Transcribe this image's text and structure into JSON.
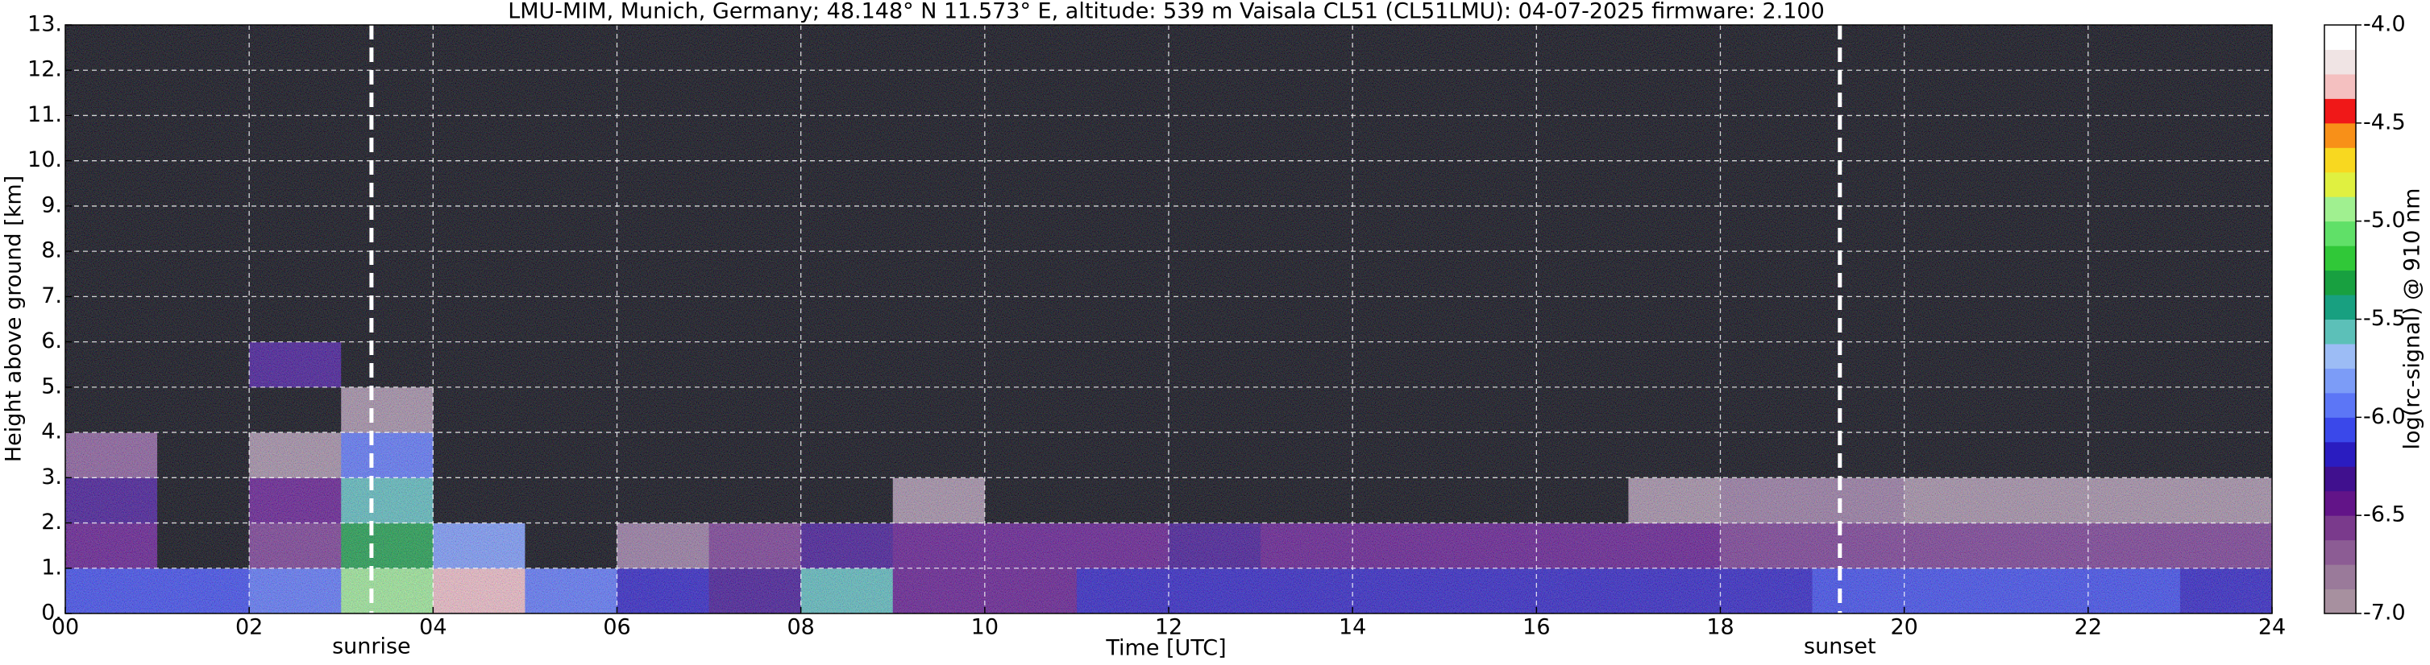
{
  "chart_data": {
    "type": "heatmap",
    "title": "LMU-MIM, Munich, Germany; 48.148° N 11.573° E, altitude: 539 m    Vaisala CL51 (CL51LMU): 04-07-2025    firmware: 2.100",
    "xlabel": "Time [UTC]",
    "ylabel": "Height above ground [km]",
    "colorbar_label": "log(rc-signal) @ 910 nm",
    "xlim": [
      0,
      24
    ],
    "xticks": [
      {
        "value": 0,
        "label": "00"
      },
      {
        "value": 2,
        "label": "02"
      },
      {
        "value": 4,
        "label": "04"
      },
      {
        "value": 6,
        "label": "06"
      },
      {
        "value": 8,
        "label": "08"
      },
      10,
      12,
      14,
      16,
      18,
      20,
      22,
      24
    ],
    "ylim": [
      0,
      13
    ],
    "yticks": [
      {
        "value": 0,
        "label": "0."
      },
      {
        "value": 1,
        "label": "1."
      },
      {
        "value": 2,
        "label": "2."
      },
      {
        "value": 3,
        "label": "3."
      },
      {
        "value": 4,
        "label": "4."
      },
      {
        "value": 5,
        "label": "5."
      },
      {
        "value": 6,
        "label": "6."
      },
      {
        "value": 7,
        "label": "7."
      },
      {
        "value": 8,
        "label": "8."
      },
      {
        "value": 9,
        "label": "9."
      },
      {
        "value": 10,
        "label": "10."
      },
      {
        "value": 11,
        "label": "11."
      },
      {
        "value": 12,
        "label": "12."
      },
      {
        "value": 13,
        "label": "13."
      }
    ],
    "zlim": [
      -7,
      -4
    ],
    "zticks": [
      {
        "value": -4,
        "label": "-4.0"
      },
      -4.5,
      {
        "value": -5,
        "label": "-5.0"
      },
      -5.5,
      {
        "value": -6,
        "label": "-6.0"
      },
      -6.5,
      {
        "value": -7,
        "label": "-7.0"
      }
    ],
    "colors": [
      "#a7909f",
      "#9a7a9a",
      "#8c5c94",
      "#7a3a8c",
      "#621488",
      "#40108e",
      "#2a1cc0",
      "#3a48ea",
      "#5c76f6",
      "#7c9cf7",
      "#9cbcf5",
      "#5cc0b8",
      "#18a080",
      "#18a040",
      "#30c838",
      "#60e068",
      "#a0f090",
      "#e0f040",
      "#f8d820",
      "#f89018",
      "#f01818",
      "#f4c0c0",
      "#f0e4e4",
      "#ffffff"
    ],
    "under_color": "#000000",
    "grid": true,
    "x": [
      0.5,
      1.5,
      2.5,
      3.5,
      4.5,
      5.5,
      6.5,
      7.5,
      8.5,
      9.5,
      10.5,
      11.5,
      12.5,
      13.5,
      14.5,
      15.5,
      16.5,
      17.5,
      18.5,
      19.5,
      20.5,
      21.5,
      22.5,
      23.5
    ],
    "y": [
      0.5,
      1.5,
      2.5,
      3.5,
      4.5,
      5.5,
      6.5,
      7.5,
      8.5,
      9.5,
      10.5,
      11.5,
      12.5
    ],
    "z": [
      [
        -6.1,
        -6.1,
        -6.0,
        -5.0,
        -4.3,
        -6.0,
        -6.2,
        -6.3,
        -5.6,
        -6.4,
        -6.4,
        -6.2,
        -6.2,
        -6.2,
        -6.2,
        -6.2,
        -6.2,
        -6.2,
        -6.2,
        -6.1,
        -6.1,
        -6.1,
        -6.1,
        -6.2
      ],
      [
        -6.4,
        -7.3,
        -6.6,
        -5.3,
        -5.8,
        -7.3,
        -6.8,
        -6.6,
        -6.3,
        -6.4,
        -6.4,
        -6.4,
        -6.3,
        -6.4,
        -6.4,
        -6.4,
        -6.4,
        -6.5,
        -6.6,
        -6.6,
        -6.6,
        -6.6,
        -6.6,
        -6.6
      ],
      [
        -6.3,
        -7.3,
        -6.5,
        -5.6,
        -7.4,
        -7.3,
        -7.1,
        -7.1,
        -7.1,
        -7.0,
        -7.1,
        -7.1,
        -7.1,
        -7.1,
        -7.1,
        -7.1,
        -7.1,
        -7.0,
        -6.8,
        -6.8,
        -6.9,
        -6.9,
        -6.9,
        -6.9
      ],
      [
        -6.7,
        -7.3,
        -6.9,
        -5.9,
        -7.4,
        -7.3,
        -7.2,
        -7.2,
        -7.2,
        -7.2,
        -7.2,
        -7.2,
        -7.2,
        -7.2,
        -7.2,
        -7.2,
        -7.2,
        -7.1,
        -7.1,
        -7.1,
        -7.1,
        -7.1,
        -7.1,
        -7.1
      ],
      [
        -7.2,
        -7.4,
        -7.1,
        -7.0,
        -7.4,
        -7.4,
        -7.2,
        -7.2,
        -7.2,
        -7.2,
        -7.2,
        -7.2,
        -7.2,
        -7.2,
        -7.2,
        -7.2,
        -7.2,
        -7.2,
        -7.2,
        -7.2,
        -7.2,
        -7.2,
        -7.2,
        -7.2
      ],
      [
        -7.2,
        -7.4,
        -6.3,
        -7.1,
        -7.4,
        -7.4,
        -7.2,
        -7.2,
        -7.2,
        -7.2,
        -7.2,
        -7.2,
        -7.2,
        -7.2,
        -7.2,
        -7.2,
        -7.2,
        -7.2,
        -7.2,
        -7.2,
        -7.2,
        -7.2,
        -7.2,
        -7.2
      ],
      [
        -7.2,
        -7.4,
        -7.2,
        -7.2,
        -7.4,
        -7.4,
        -7.2,
        -7.2,
        -7.2,
        -7.2,
        -7.2,
        -7.2,
        -7.2,
        -7.2,
        -7.2,
        -7.2,
        -7.2,
        -7.2,
        -7.2,
        -7.2,
        -7.2,
        -7.2,
        -7.2,
        -7.2
      ],
      [
        -7.2,
        -7.4,
        -7.2,
        -7.2,
        -7.4,
        -7.4,
        -7.2,
        -7.2,
        -7.2,
        -7.2,
        -7.2,
        -7.2,
        -7.2,
        -7.2,
        -7.2,
        -7.2,
        -7.2,
        -7.2,
        -7.2,
        -7.2,
        -7.2,
        -7.2,
        -7.2,
        -7.2
      ],
      [
        -7.2,
        -7.4,
        -7.2,
        -7.2,
        -7.4,
        -7.4,
        -7.2,
        -7.2,
        -7.2,
        -7.2,
        -7.2,
        -7.2,
        -7.2,
        -7.2,
        -7.2,
        -7.2,
        -7.2,
        -7.2,
        -7.2,
        -7.2,
        -7.2,
        -7.2,
        -7.2,
        -7.2
      ],
      [
        -7.2,
        -7.4,
        -7.2,
        -7.2,
        -7.4,
        -7.4,
        -7.2,
        -7.2,
        -7.2,
        -7.2,
        -7.2,
        -7.2,
        -7.2,
        -7.2,
        -7.2,
        -7.2,
        -7.2,
        -7.2,
        -7.2,
        -7.2,
        -7.2,
        -7.2,
        -7.2,
        -7.2
      ],
      [
        -7.2,
        -7.4,
        -7.2,
        -7.2,
        -7.4,
        -7.4,
        -7.2,
        -7.2,
        -7.2,
        -7.2,
        -7.2,
        -7.2,
        -7.2,
        -7.2,
        -7.2,
        -7.2,
        -7.2,
        -7.2,
        -7.2,
        -7.2,
        -7.2,
        -7.2,
        -7.2,
        -7.2
      ],
      [
        -7.2,
        -7.4,
        -7.2,
        -7.2,
        -7.4,
        -7.4,
        -7.2,
        -7.2,
        -7.2,
        -7.2,
        -7.2,
        -7.2,
        -7.2,
        -7.2,
        -7.2,
        -7.2,
        -7.2,
        -7.2,
        -7.2,
        -7.2,
        -7.2,
        -7.2,
        -7.2,
        -7.2
      ],
      [
        -7.2,
        -7.4,
        -7.2,
        -7.2,
        -7.4,
        -7.4,
        -7.2,
        -7.2,
        -7.2,
        -7.2,
        -7.2,
        -7.2,
        -7.2,
        -7.2,
        -7.2,
        -7.2,
        -7.2,
        -7.2,
        -7.2,
        -7.2,
        -7.2,
        -7.2,
        -7.2,
        -7.2
      ]
    ],
    "annotations": [
      {
        "text": "sunrise",
        "x": 3.33
      },
      {
        "text": "sunset",
        "x": 19.3
      }
    ]
  }
}
